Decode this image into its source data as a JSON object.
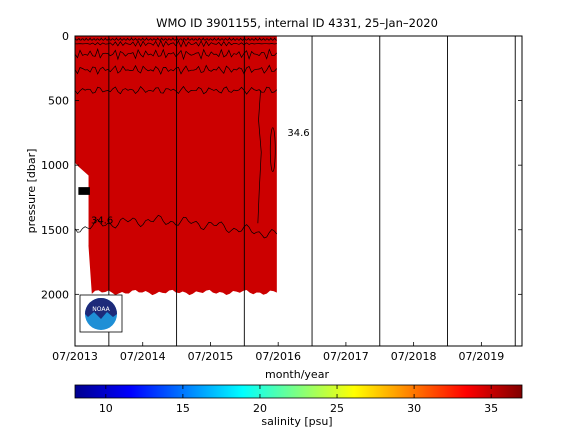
{
  "chart_data": {
    "type": "heatmap",
    "title": "WMO ID 3901155, internal ID 4331, 25–Jan–2020",
    "xlabel": "month/year",
    "ylabel": "pressure [dbar]",
    "x_ticks": [
      "07/2013",
      "07/2014",
      "07/2015",
      "07/2016",
      "07/2017",
      "07/2018",
      "07/2019"
    ],
    "x_range_years": [
      2013.5,
      2020.1
    ],
    "y_ticks": [
      0,
      500,
      1000,
      1500,
      2000
    ],
    "y_range_dbar": [
      0,
      2400
    ],
    "y_reversed": true,
    "grid": "vertical lines at each yearly cycle",
    "data_extent": {
      "start": "07/2013",
      "end": "06/2016",
      "max_pressure_dbar": 2000
    },
    "salinity_field_color": "#cc0000",
    "contour_labels": [
      {
        "text": "34.6",
        "time": 2016.8,
        "pressure_dbar": 750
      },
      {
        "text": "34.6",
        "time": 2013.9,
        "pressure_dbar": 1430
      }
    ],
    "colorbar": {
      "label": "salinity [psu]",
      "ticks": [
        10,
        15,
        20,
        25,
        30,
        35
      ],
      "range": [
        8,
        37
      ],
      "colormap": "jet"
    },
    "logo": "noaa-logo"
  }
}
